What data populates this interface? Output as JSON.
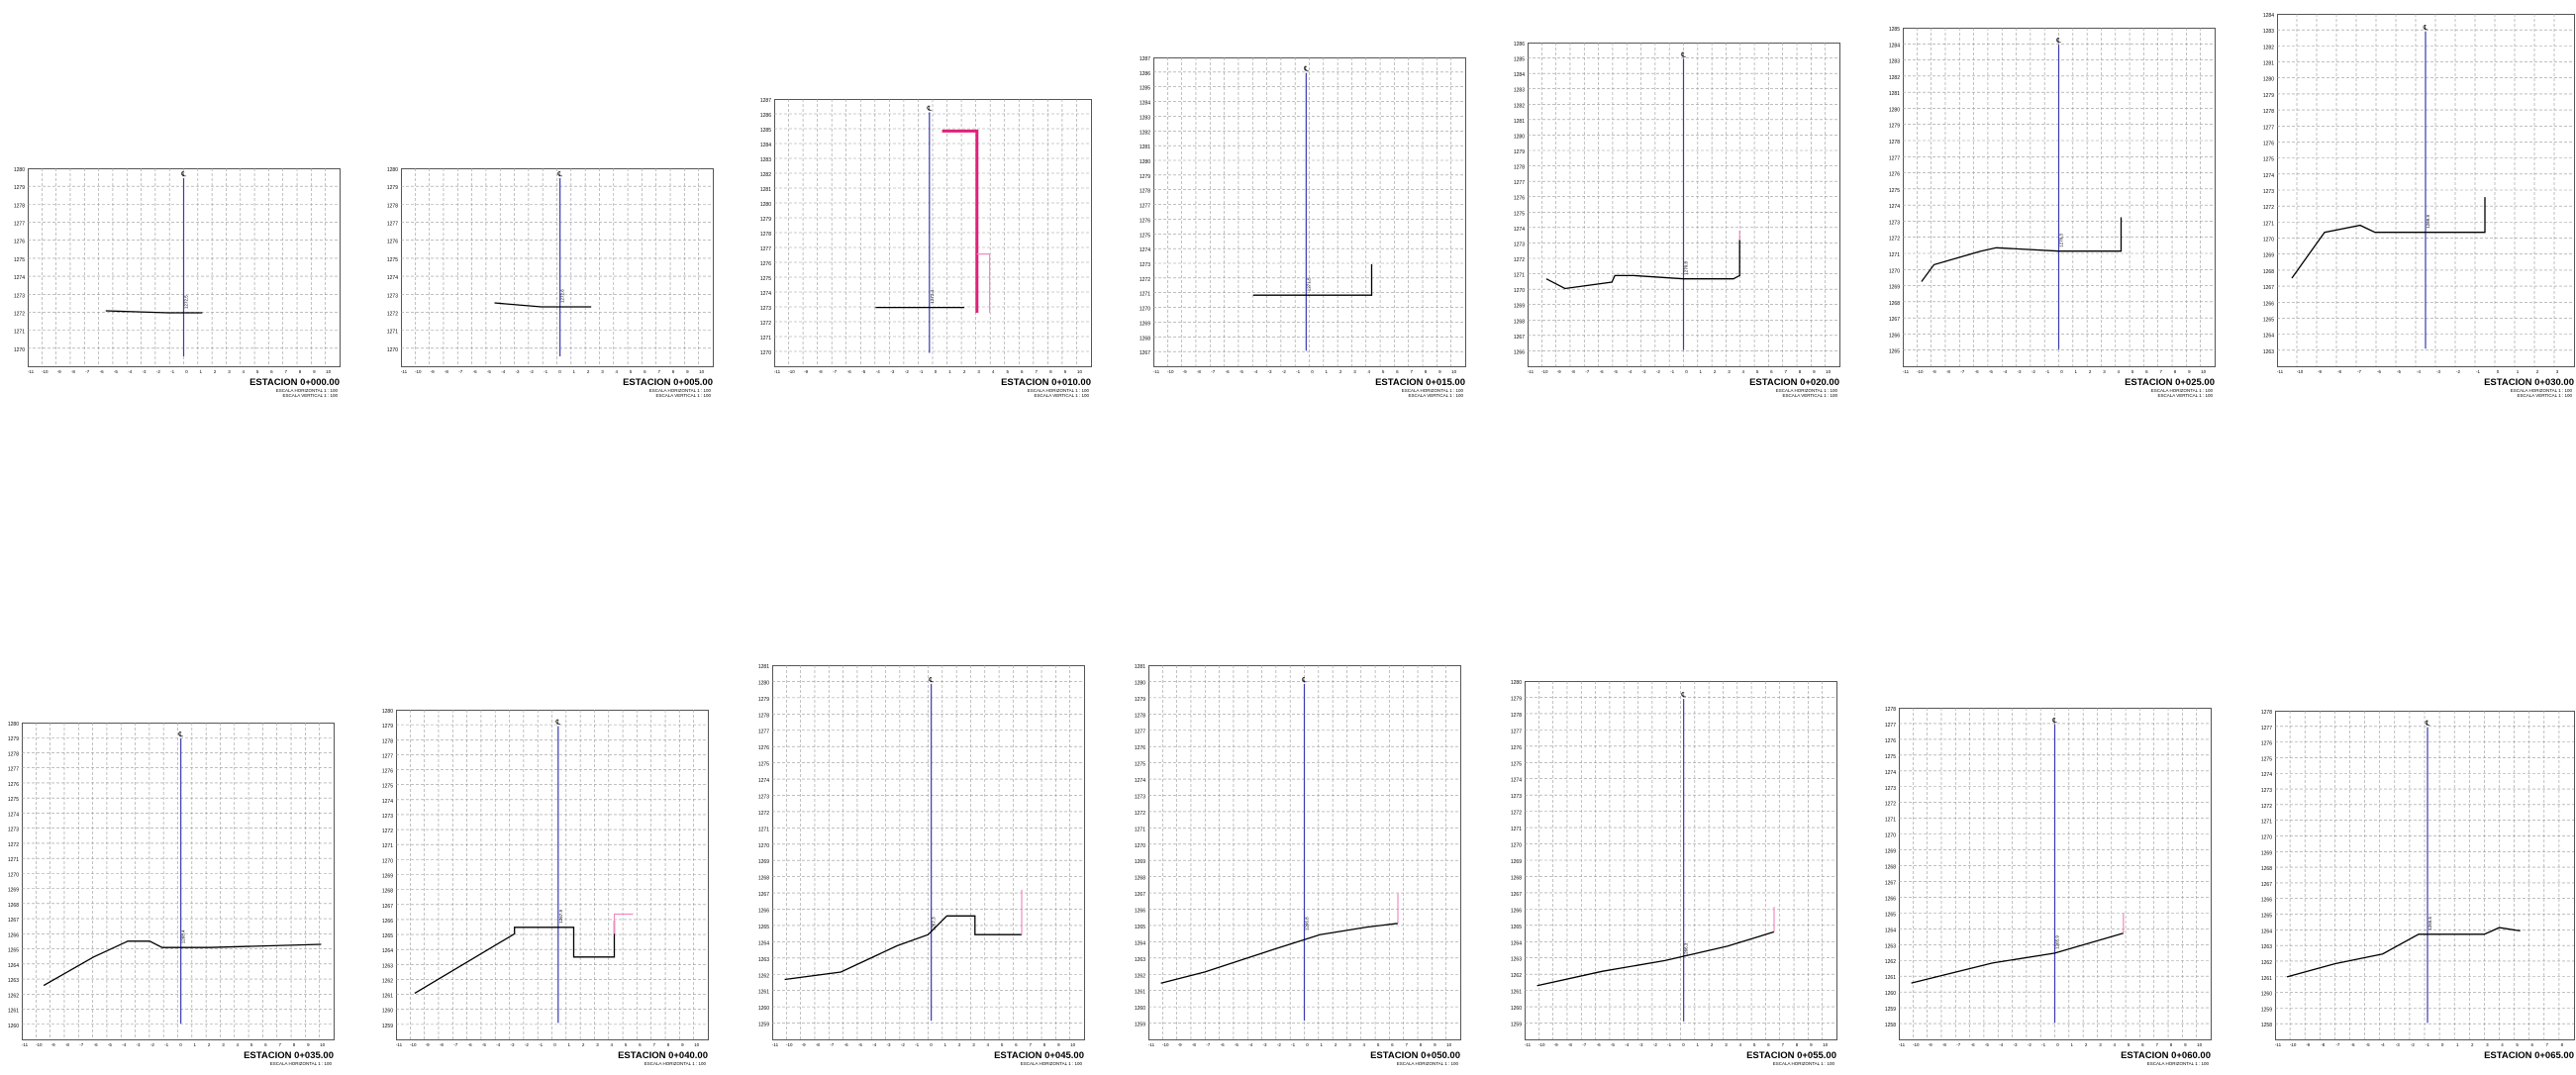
{
  "sheet": {
    "background": "#ffffff",
    "colors": {
      "grid": "#9a9a9a",
      "frame": "#555555",
      "terrain": "#000000",
      "axis": "#3a3ab0",
      "design": "#e0207a",
      "design_light": "#f08cc0"
    },
    "axis_symbol": "℄",
    "sections": [
      {
        "station": "ESTACION 0+000.00",
        "scale_h": "ESCALA HORIZONTAL 1 : 100",
        "scale_v": "ESCALA VERTICAL 1 : 100",
        "cota": "1272.5",
        "elev_labels": [
          "1280",
          "1279",
          "1278",
          "1277",
          "1276",
          "1275",
          "1274",
          "1273",
          "1272",
          "1271",
          "1270"
        ],
        "dist_labels": [
          "-11",
          "-10",
          "-9",
          "-8",
          "-7",
          "-6",
          "-5",
          "-4",
          "-3",
          "-2",
          "-1",
          "0",
          "1",
          "2",
          "3",
          "4",
          "5",
          "6",
          "7",
          "8",
          "9",
          "10"
        ]
      },
      {
        "station": "ESTACION 0+005.00",
        "scale_h": "ESCALA HORIZONTAL 1 : 100",
        "scale_v": "ESCALA VERTICAL 1 : 100",
        "cota": "1272.6",
        "elev_labels": [
          "1280",
          "1279",
          "1278",
          "1277",
          "1276",
          "1275",
          "1274",
          "1273",
          "1272",
          "1271",
          "1270"
        ],
        "dist_labels": [
          "-11",
          "-10",
          "-9",
          "-8",
          "-7",
          "-6",
          "-5",
          "-4",
          "-3",
          "-2",
          "-1",
          "0",
          "1",
          "2",
          "3",
          "4",
          "5",
          "6",
          "7",
          "8",
          "9",
          "10"
        ]
      },
      {
        "station": "ESTACION 0+010.00",
        "scale_h": "ESCALA HORIZONTAL 1 : 100",
        "scale_v": "ESCALA VERTICAL 1 : 100",
        "cota": "1272.4",
        "elev_labels": [
          "1287",
          "1286",
          "1285",
          "1284",
          "1283",
          "1282",
          "1281",
          "1280",
          "1279",
          "1278",
          "1277",
          "1276",
          "1275",
          "1274",
          "1273",
          "1272",
          "1271",
          "1270"
        ],
        "dist_labels": [
          "-11",
          "-10",
          "-9",
          "-8",
          "-7",
          "-6",
          "-5",
          "-4",
          "-3",
          "-2",
          "-1",
          "0",
          "1",
          "2",
          "3",
          "4",
          "5",
          "6",
          "7",
          "8",
          "9",
          "10"
        ]
      },
      {
        "station": "ESTACION 0+015.00",
        "scale_h": "ESCALA HORIZONTAL 1 : 100",
        "scale_v": "ESCALA VERTICAL 1 : 100",
        "cota": "1271.5",
        "elev_labels": [
          "1287",
          "1286",
          "1285",
          "1284",
          "1283",
          "1282",
          "1281",
          "1280",
          "1279",
          "1278",
          "1277",
          "1276",
          "1275",
          "1274",
          "1273",
          "1272",
          "1271",
          "1270",
          "1269",
          "1268",
          "1267"
        ],
        "dist_labels": [
          "-11",
          "-10",
          "-9",
          "-8",
          "-7",
          "-6",
          "-5",
          "-4",
          "-3",
          "-2",
          "-1",
          "0",
          "1",
          "2",
          "3",
          "4",
          "5",
          "6",
          "7",
          "8",
          "9",
          "10"
        ]
      },
      {
        "station": "ESTACION 0+020.00",
        "scale_h": "ESCALA HORIZONTAL 1 : 100",
        "scale_v": "ESCALA VERTICAL 1 : 100",
        "cota": "1270.8",
        "elev_labels": [
          "1286",
          "1285",
          "1284",
          "1283",
          "1282",
          "1281",
          "1280",
          "1279",
          "1278",
          "1277",
          "1276",
          "1275",
          "1274",
          "1273",
          "1272",
          "1271",
          "1270",
          "1269",
          "1268",
          "1267",
          "1266"
        ],
        "dist_labels": [
          "-11",
          "-10",
          "-9",
          "-8",
          "-7",
          "-6",
          "-5",
          "-4",
          "-3",
          "-2",
          "-1",
          "0",
          "1",
          "2",
          "3",
          "4",
          "5",
          "6",
          "7",
          "8",
          "9",
          "10"
        ]
      },
      {
        "station": "ESTACION 0+025.00",
        "scale_h": "ESCALA HORIZONTAL 1 : 100",
        "scale_v": "ESCALA VERTICAL 1 : 100",
        "cota": "1270.3",
        "elev_labels": [
          "1285",
          "1284",
          "1283",
          "1282",
          "1281",
          "1280",
          "1279",
          "1278",
          "1277",
          "1276",
          "1275",
          "1274",
          "1273",
          "1272",
          "1271",
          "1270",
          "1269",
          "1268",
          "1267",
          "1266",
          "1265"
        ],
        "dist_labels": [
          "-11",
          "-10",
          "-9",
          "-8",
          "-7",
          "-6",
          "-5",
          "-4",
          "-3",
          "-2",
          "-1",
          "0",
          "1",
          "2",
          "3",
          "4",
          "5",
          "6",
          "7",
          "8",
          "9",
          "10"
        ]
      },
      {
        "station": "ESTACION 0+030.00",
        "scale_h": "ESCALA HORIZONTAL 1 : 100",
        "scale_v": "ESCALA VERTICAL 1 : 100",
        "cota": "1269.9",
        "elev_labels": [
          "1284",
          "1283",
          "1282",
          "1281",
          "1280",
          "1279",
          "1278",
          "1277",
          "1276",
          "1275",
          "1274",
          "1273",
          "1272",
          "1271",
          "1270",
          "1269",
          "1268",
          "1267",
          "1266",
          "1265",
          "1264",
          "1263"
        ],
        "dist_labels": [
          "-11",
          "-10",
          "-9",
          "-8",
          "-7",
          "-6",
          "-5",
          "-4",
          "-3",
          "-2",
          "-1",
          "0",
          "1",
          "2",
          "3"
        ]
      },
      {
        "station": "ESTACION 0+035.00",
        "scale_h": "ESCALA HORIZONTAL 1 : 100",
        "scale_v": "",
        "cota": "1268.4",
        "elev_labels": [
          "1280",
          "1279",
          "1278",
          "1277",
          "1276",
          "1275",
          "1274",
          "1273",
          "1272",
          "1271",
          "1270",
          "1269",
          "1268",
          "1267",
          "1266",
          "1265",
          "1264",
          "1263",
          "1262",
          "1261",
          "1260"
        ],
        "dist_labels": [
          "-11",
          "-10",
          "-9",
          "-8",
          "-7",
          "-6",
          "-5",
          "-4",
          "-3",
          "-2",
          "-1",
          "0",
          "1",
          "2",
          "3",
          "4",
          "5",
          "6",
          "7",
          "8",
          "9",
          "10"
        ]
      },
      {
        "station": "ESTACION 0+040.00",
        "scale_h": "ESCALA HORIZONTAL 1 : 100",
        "scale_v": "",
        "cota": "1267.9",
        "elev_labels": [
          "1280",
          "1279",
          "1278",
          "1277",
          "1276",
          "1275",
          "1274",
          "1273",
          "1272",
          "1271",
          "1270",
          "1269",
          "1268",
          "1267",
          "1266",
          "1265",
          "1264",
          "1263",
          "1262",
          "1261",
          "1260",
          "1259"
        ],
        "dist_labels": [
          "-11",
          "-10",
          "-9",
          "-8",
          "-7",
          "-6",
          "-5",
          "-4",
          "-3",
          "-2",
          "-1",
          "0",
          "1",
          "2",
          "3",
          "4",
          "5",
          "6",
          "7",
          "8",
          "9",
          "10"
        ]
      },
      {
        "station": "ESTACION 0+045.00",
        "scale_h": "ESCALA HORIZONTAL 1 : 100",
        "scale_v": "",
        "cota": "1267.3",
        "elev_labels": [
          "1281",
          "1280",
          "1279",
          "1278",
          "1277",
          "1276",
          "1275",
          "1274",
          "1273",
          "1272",
          "1271",
          "1270",
          "1269",
          "1268",
          "1267",
          "1266",
          "1265",
          "1264",
          "1263",
          "1262",
          "1261",
          "1260",
          "1259"
        ],
        "dist_labels": [
          "-11",
          "-10",
          "-9",
          "-8",
          "-7",
          "-6",
          "-5",
          "-4",
          "-3",
          "-2",
          "-1",
          "0",
          "1",
          "2",
          "3",
          "4",
          "5",
          "6",
          "7",
          "8",
          "9",
          "10"
        ]
      },
      {
        "station": "ESTACION 0+050.00",
        "scale_h": "ESCALA HORIZONTAL 1 : 100",
        "scale_v": "",
        "cota": "1266.8",
        "elev_labels": [
          "1281",
          "1280",
          "1279",
          "1278",
          "1277",
          "1276",
          "1275",
          "1274",
          "1273",
          "1272",
          "1271",
          "1270",
          "1269",
          "1268",
          "1267",
          "1266",
          "1265",
          "1264",
          "1263",
          "1262",
          "1261",
          "1260",
          "1259"
        ],
        "dist_labels": [
          "-11",
          "-10",
          "-9",
          "-8",
          "-7",
          "-6",
          "-5",
          "-4",
          "-3",
          "-2",
          "-1",
          "0",
          "1",
          "2",
          "3",
          "4",
          "5",
          "6",
          "7",
          "8",
          "9",
          "10"
        ]
      },
      {
        "station": "ESTACION 0+055.00",
        "scale_h": "ESCALA HORIZONTAL 1 : 100",
        "scale_v": "",
        "cota": "1266.3",
        "elev_labels": [
          "1280",
          "1279",
          "1278",
          "1277",
          "1276",
          "1275",
          "1274",
          "1273",
          "1272",
          "1271",
          "1270",
          "1269",
          "1268",
          "1267",
          "1266",
          "1265",
          "1264",
          "1263",
          "1262",
          "1261",
          "1260",
          "1259"
        ],
        "dist_labels": [
          "-11",
          "-10",
          "-9",
          "-8",
          "-7",
          "-6",
          "-5",
          "-4",
          "-3",
          "-2",
          "-1",
          "0",
          "1",
          "2",
          "3",
          "4",
          "5",
          "6",
          "7",
          "8",
          "9",
          "10"
        ]
      },
      {
        "station": "ESTACION 0+060.00",
        "scale_h": "ESCALA HORIZONTAL 1 : 100",
        "scale_v": "",
        "cota": "1265.9",
        "elev_labels": [
          "1278",
          "1277",
          "1276",
          "1275",
          "1274",
          "1273",
          "1272",
          "1271",
          "1270",
          "1269",
          "1268",
          "1267",
          "1266",
          "1265",
          "1264",
          "1263",
          "1262",
          "1261",
          "1260",
          "1259",
          "1258"
        ],
        "dist_labels": [
          "-11",
          "-10",
          "-9",
          "-8",
          "-7",
          "-6",
          "-5",
          "-4",
          "-3",
          "-2",
          "-1",
          "0",
          "1",
          "2",
          "3",
          "4",
          "5",
          "6",
          "7",
          "8",
          "9",
          "10"
        ]
      },
      {
        "station": "ESTACION 0+065.00",
        "scale_h": "",
        "scale_v": "",
        "cota": "1265.5",
        "elev_labels": [
          "1278",
          "1277",
          "1276",
          "1275",
          "1274",
          "1273",
          "1272",
          "1271",
          "1270",
          "1269",
          "1268",
          "1267",
          "1266",
          "1265",
          "1264",
          "1263",
          "1262",
          "1261",
          "1260",
          "1259",
          "1258"
        ],
        "dist_labels": [
          "-11",
          "-10",
          "-9",
          "-8",
          "-7",
          "-6",
          "-5",
          "-4",
          "-3",
          "-2",
          "-1",
          "0",
          "1",
          "2",
          "3",
          "4",
          "5",
          "6",
          "7",
          "8"
        ]
      }
    ]
  }
}
